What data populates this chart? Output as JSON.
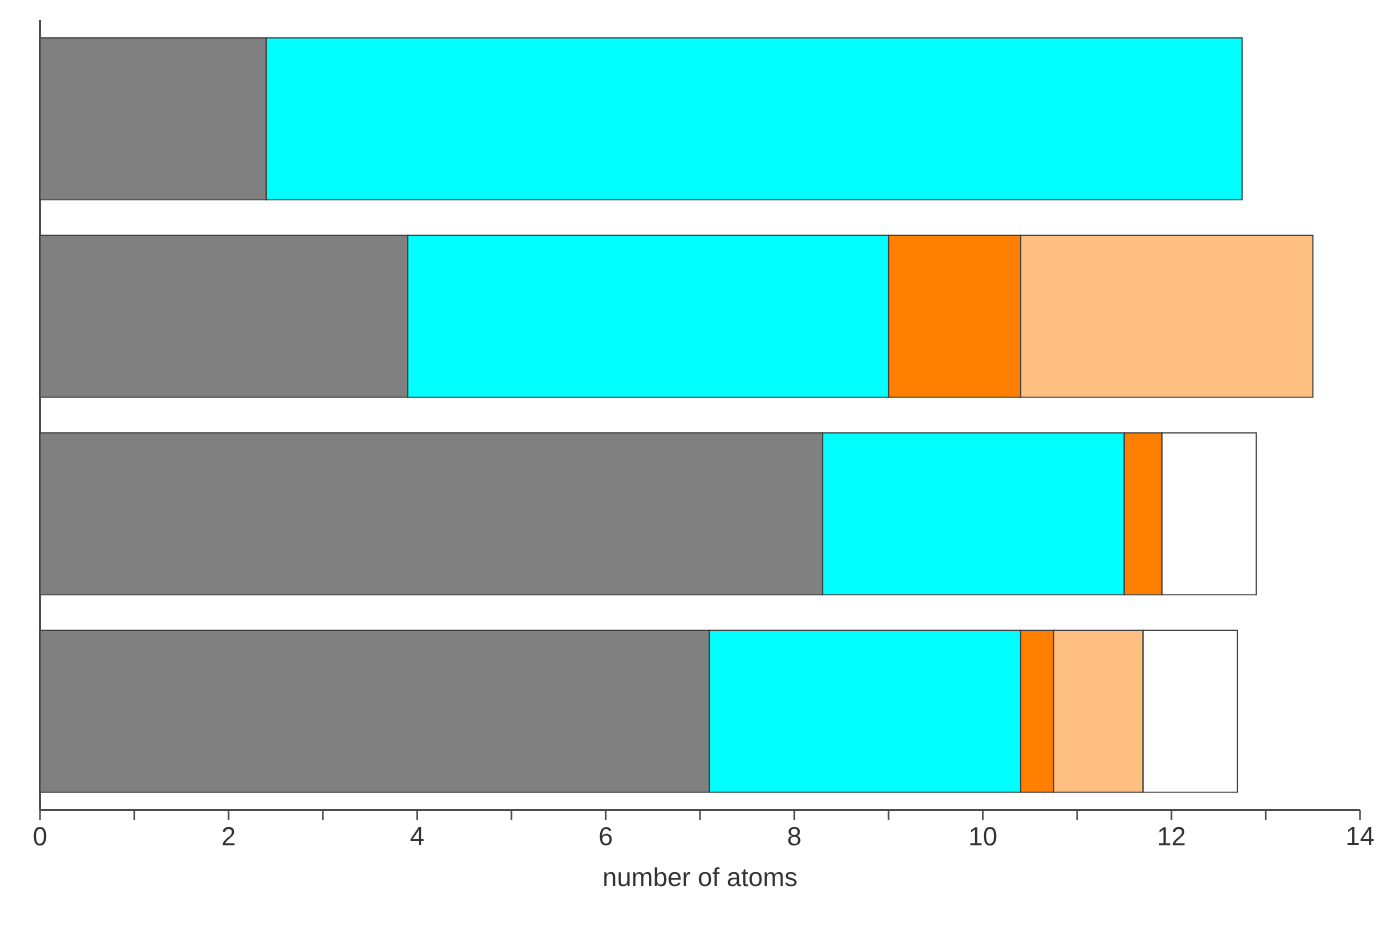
{
  "chart_data": {
    "type": "bar",
    "orientation": "horizontal",
    "stacked": true,
    "xlabel": "number of atoms",
    "categories": [
      null,
      null,
      null,
      null
    ],
    "series": [
      {
        "color": "#808080",
        "values": [
          2.4,
          3.9,
          8.3,
          7.1
        ]
      },
      {
        "color": "#00ffff",
        "values": [
          10.35,
          5.1,
          3.2,
          3.3
        ]
      },
      {
        "color": "#ff8000",
        "values": [
          null,
          1.4,
          0.4,
          0.35
        ]
      },
      {
        "color": "#ffbf80",
        "values": [
          null,
          3.1,
          null,
          0.95
        ]
      },
      {
        "color": "#ffffff",
        "values": [
          null,
          null,
          1.0,
          1.0
        ]
      }
    ],
    "xlim": [
      0,
      14
    ],
    "xticks": [
      0,
      {
        "value": 1,
        "label": null
      },
      2,
      {
        "value": 3,
        "label": null
      },
      4,
      {
        "value": 5,
        "label": null
      },
      6,
      {
        "value": 7,
        "label": null
      },
      8,
      {
        "value": 9,
        "label": null
      },
      10,
      {
        "value": 11,
        "label": null
      },
      12,
      {
        "value": 13,
        "label": null
      },
      14
    ]
  }
}
